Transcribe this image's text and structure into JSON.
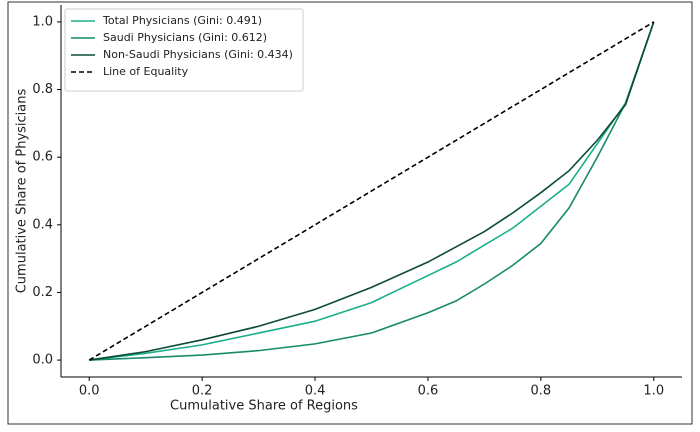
{
  "chart_data": {
    "type": "line",
    "xlabel": "Cumulative Share of Regions",
    "ylabel": "Cumulative Share of Physicians",
    "x": [
      0,
      0.1,
      0.2,
      0.3,
      0.4,
      0.5,
      0.6,
      0.65,
      0.7,
      0.75,
      0.8,
      0.85,
      0.9,
      0.95,
      1.0
    ],
    "series": [
      {
        "name": "Total Physicians (Gini: 0.491)",
        "color": "#1aae8a",
        "dash": false,
        "values": [
          0,
          0.02,
          0.045,
          0.08,
          0.115,
          0.17,
          0.25,
          0.29,
          0.34,
          0.39,
          0.455,
          0.52,
          0.64,
          0.76,
          1.0
        ]
      },
      {
        "name": "Saudi Physicians (Gini: 0.612)",
        "color": "#178a6b",
        "dash": false,
        "values": [
          0,
          0.007,
          0.015,
          0.028,
          0.048,
          0.08,
          0.14,
          0.175,
          0.225,
          0.28,
          0.345,
          0.45,
          0.6,
          0.76,
          1.0
        ]
      },
      {
        "name": "Non-Saudi Physicians (Gini: 0.434)",
        "color": "#0c4b36",
        "dash": false,
        "values": [
          0,
          0.025,
          0.06,
          0.1,
          0.15,
          0.215,
          0.29,
          0.335,
          0.38,
          0.435,
          0.495,
          0.56,
          0.65,
          0.755,
          1.0
        ]
      }
    ],
    "reference": {
      "name": "Line of Equality",
      "color": "#000000",
      "dash": true,
      "x": [
        0,
        1.0
      ],
      "values": [
        0,
        1.0
      ]
    },
    "xlim": [
      -0.05,
      1.05
    ],
    "ylim": [
      -0.05,
      1.05
    ],
    "xticks": [
      {
        "value": 0,
        "label": "0.0"
      },
      {
        "value": 0.2,
        "label": "0.2"
      },
      {
        "value": 0.4,
        "label": "0.4"
      },
      {
        "value": 0.6,
        "label": "0.6"
      },
      {
        "value": 0.8,
        "label": "0.8"
      },
      {
        "value": 1.0,
        "label": "1.0"
      }
    ],
    "yticks": [
      {
        "value": 0,
        "label": "0.0"
      },
      {
        "value": 0.2,
        "label": "0.2"
      },
      {
        "value": 0.4,
        "label": "0.4"
      },
      {
        "value": 0.6,
        "label": "0.6"
      },
      {
        "value": 0.8,
        "label": "0.8"
      },
      {
        "value": 1.0,
        "label": "1.0"
      }
    ],
    "legend": "upper left",
    "grid": false
  }
}
